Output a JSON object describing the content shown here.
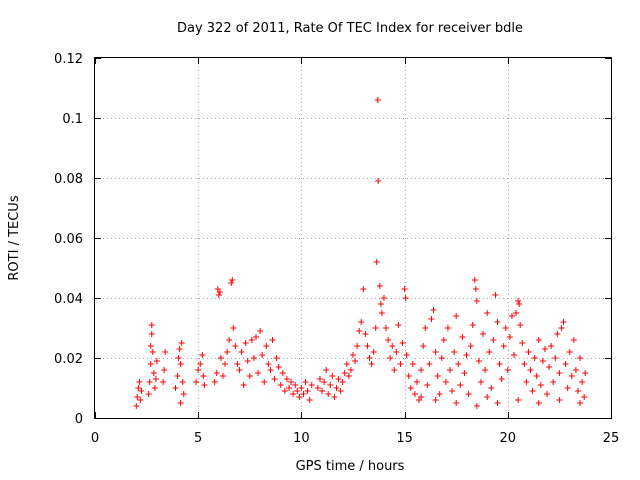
{
  "chart_data": {
    "type": "scatter",
    "title": "Day 322 of 2011, Rate Of TEC Index for receiver bdle",
    "xlabel": "GPS time / hours",
    "ylabel": "ROTI / TECUs",
    "xlim": [
      0,
      25
    ],
    "ylim": [
      0,
      0.12
    ],
    "x_ticks": [
      0,
      5,
      10,
      15,
      20,
      25
    ],
    "x_tick_labels": [
      "0",
      "5",
      "10",
      "15",
      "20",
      "25"
    ],
    "y_ticks": [
      0,
      0.02,
      0.04,
      0.06,
      0.08,
      0.1,
      0.12
    ],
    "y_tick_labels": [
      "0",
      "0.02",
      "0.04",
      "0.06",
      "0.08",
      "0.1",
      "0.12"
    ],
    "grid": true,
    "marker": "+",
    "marker_color": "#ff0000",
    "series": [
      {
        "name": "ROTI",
        "points": [
          [
            2.0,
            0.004
          ],
          [
            2.05,
            0.007
          ],
          [
            2.1,
            0.01
          ],
          [
            2.15,
            0.012
          ],
          [
            2.2,
            0.006
          ],
          [
            2.25,
            0.009
          ],
          [
            2.6,
            0.008
          ],
          [
            2.65,
            0.012
          ],
          [
            2.7,
            0.018
          ],
          [
            2.7,
            0.024
          ],
          [
            2.75,
            0.028
          ],
          [
            2.75,
            0.031
          ],
          [
            2.8,
            0.022
          ],
          [
            2.85,
            0.015
          ],
          [
            2.9,
            0.01
          ],
          [
            2.95,
            0.013
          ],
          [
            3.0,
            0.019
          ],
          [
            3.3,
            0.012
          ],
          [
            3.35,
            0.016
          ],
          [
            3.4,
            0.022
          ],
          [
            3.9,
            0.01
          ],
          [
            4.0,
            0.014
          ],
          [
            4.05,
            0.02
          ],
          [
            4.1,
            0.023
          ],
          [
            4.15,
            0.018
          ],
          [
            4.2,
            0.025
          ],
          [
            4.25,
            0.012
          ],
          [
            4.3,
            0.008
          ],
          [
            4.15,
            0.005
          ],
          [
            4.9,
            0.012
          ],
          [
            5.0,
            0.016
          ],
          [
            5.1,
            0.018
          ],
          [
            5.2,
            0.021
          ],
          [
            5.25,
            0.014
          ],
          [
            5.3,
            0.011
          ],
          [
            5.8,
            0.012
          ],
          [
            5.9,
            0.015
          ],
          [
            5.95,
            0.043
          ],
          [
            6.0,
            0.041
          ],
          [
            6.05,
            0.042
          ],
          [
            6.1,
            0.02
          ],
          [
            6.2,
            0.014
          ],
          [
            6.3,
            0.018
          ],
          [
            6.4,
            0.022
          ],
          [
            6.5,
            0.026
          ],
          [
            6.6,
            0.045
          ],
          [
            6.65,
            0.046
          ],
          [
            6.7,
            0.03
          ],
          [
            6.8,
            0.024
          ],
          [
            6.9,
            0.018
          ],
          [
            7.0,
            0.016
          ],
          [
            7.1,
            0.022
          ],
          [
            7.2,
            0.011
          ],
          [
            7.3,
            0.025
          ],
          [
            7.4,
            0.019
          ],
          [
            7.5,
            0.014
          ],
          [
            7.6,
            0.026
          ],
          [
            7.7,
            0.02
          ],
          [
            7.8,
            0.027
          ],
          [
            7.9,
            0.015
          ],
          [
            8.0,
            0.029
          ],
          [
            8.1,
            0.021
          ],
          [
            8.2,
            0.012
          ],
          [
            8.3,
            0.024
          ],
          [
            8.4,
            0.018
          ],
          [
            8.5,
            0.016
          ],
          [
            8.6,
            0.026
          ],
          [
            8.7,
            0.013
          ],
          [
            8.8,
            0.02
          ],
          [
            8.9,
            0.017
          ],
          [
            9.0,
            0.011
          ],
          [
            9.1,
            0.015
          ],
          [
            9.2,
            0.009
          ],
          [
            9.3,
            0.013
          ],
          [
            9.4,
            0.01
          ],
          [
            9.5,
            0.012
          ],
          [
            9.6,
            0.008
          ],
          [
            9.7,
            0.011
          ],
          [
            9.8,
            0.009
          ],
          [
            9.9,
            0.007
          ],
          [
            10.0,
            0.01
          ],
          [
            10.1,
            0.008
          ],
          [
            10.2,
            0.012
          ],
          [
            10.3,
            0.009
          ],
          [
            10.4,
            0.006
          ],
          [
            10.5,
            0.011
          ],
          [
            10.8,
            0.01
          ],
          [
            10.9,
            0.013
          ],
          [
            11.0,
            0.009
          ],
          [
            11.1,
            0.012
          ],
          [
            11.2,
            0.016
          ],
          [
            11.3,
            0.008
          ],
          [
            11.4,
            0.011
          ],
          [
            11.5,
            0.014
          ],
          [
            11.6,
            0.007
          ],
          [
            11.7,
            0.01
          ],
          [
            11.8,
            0.013
          ],
          [
            11.9,
            0.009
          ],
          [
            12.0,
            0.012
          ],
          [
            12.1,
            0.015
          ],
          [
            12.2,
            0.018
          ],
          [
            12.3,
            0.014
          ],
          [
            12.4,
            0.016
          ],
          [
            12.5,
            0.021
          ],
          [
            12.6,
            0.019
          ],
          [
            12.7,
            0.024
          ],
          [
            12.8,
            0.029
          ],
          [
            12.9,
            0.032
          ],
          [
            13.0,
            0.043
          ],
          [
            13.1,
            0.028
          ],
          [
            13.2,
            0.024
          ],
          [
            13.3,
            0.02
          ],
          [
            13.4,
            0.018
          ],
          [
            13.5,
            0.022
          ],
          [
            13.6,
            0.03
          ],
          [
            13.65,
            0.052
          ],
          [
            13.7,
            0.106
          ],
          [
            13.72,
            0.079
          ],
          [
            13.8,
            0.044
          ],
          [
            13.85,
            0.038
          ],
          [
            13.9,
            0.035
          ],
          [
            14.0,
            0.04
          ],
          [
            14.1,
            0.03
          ],
          [
            14.2,
            0.026
          ],
          [
            14.3,
            0.02
          ],
          [
            14.4,
            0.024
          ],
          [
            14.5,
            0.016
          ],
          [
            14.6,
            0.022
          ],
          [
            14.7,
            0.031
          ],
          [
            14.8,
            0.018
          ],
          [
            14.9,
            0.025
          ],
          [
            15.0,
            0.043
          ],
          [
            15.05,
            0.04
          ],
          [
            15.1,
            0.021
          ],
          [
            15.2,
            0.014
          ],
          [
            15.3,
            0.01
          ],
          [
            15.4,
            0.018
          ],
          [
            15.5,
            0.008
          ],
          [
            15.6,
            0.012
          ],
          [
            15.7,
            0.006
          ],
          [
            15.8,
            0.016
          ],
          [
            15.9,
            0.024
          ],
          [
            16.0,
            0.03
          ],
          [
            16.1,
            0.011
          ],
          [
            16.2,
            0.018
          ],
          [
            16.3,
            0.033
          ],
          [
            16.4,
            0.036
          ],
          [
            16.5,
            0.022
          ],
          [
            16.6,
            0.014
          ],
          [
            16.7,
            0.008
          ],
          [
            16.8,
            0.02
          ],
          [
            16.9,
            0.026
          ],
          [
            17.0,
            0.012
          ],
          [
            17.1,
            0.03
          ],
          [
            17.2,
            0.016
          ],
          [
            17.3,
            0.009
          ],
          [
            17.4,
            0.022
          ],
          [
            17.5,
            0.034
          ],
          [
            17.6,
            0.018
          ],
          [
            17.7,
            0.011
          ],
          [
            17.8,
            0.027
          ],
          [
            17.9,
            0.015
          ],
          [
            18.0,
            0.021
          ],
          [
            18.1,
            0.008
          ],
          [
            18.2,
            0.024
          ],
          [
            18.3,
            0.031
          ],
          [
            18.4,
            0.046
          ],
          [
            18.45,
            0.043
          ],
          [
            18.5,
            0.039
          ],
          [
            18.6,
            0.019
          ],
          [
            18.7,
            0.012
          ],
          [
            18.8,
            0.028
          ],
          [
            18.9,
            0.016
          ],
          [
            19.0,
            0.035
          ],
          [
            19.1,
            0.022
          ],
          [
            19.2,
            0.01
          ],
          [
            19.3,
            0.026
          ],
          [
            19.4,
            0.041
          ],
          [
            19.5,
            0.032
          ],
          [
            19.6,
            0.018
          ],
          [
            19.7,
            0.013
          ],
          [
            19.8,
            0.024
          ],
          [
            19.9,
            0.03
          ],
          [
            20.0,
            0.016
          ],
          [
            20.1,
            0.027
          ],
          [
            20.2,
            0.034
          ],
          [
            20.3,
            0.021
          ],
          [
            20.4,
            0.035
          ],
          [
            20.5,
            0.039
          ],
          [
            20.55,
            0.038
          ],
          [
            20.6,
            0.031
          ],
          [
            20.7,
            0.025
          ],
          [
            20.8,
            0.018
          ],
          [
            20.9,
            0.012
          ],
          [
            21.0,
            0.022
          ],
          [
            21.1,
            0.016
          ],
          [
            21.2,
            0.009
          ],
          [
            21.3,
            0.02
          ],
          [
            21.4,
            0.014
          ],
          [
            21.5,
            0.026
          ],
          [
            21.6,
            0.011
          ],
          [
            21.7,
            0.019
          ],
          [
            21.8,
            0.023
          ],
          [
            21.9,
            0.008
          ],
          [
            22.0,
            0.017
          ],
          [
            22.1,
            0.024
          ],
          [
            22.2,
            0.012
          ],
          [
            22.3,
            0.02
          ],
          [
            22.4,
            0.028
          ],
          [
            22.5,
            0.015
          ],
          [
            22.6,
            0.03
          ],
          [
            22.7,
            0.032
          ],
          [
            22.8,
            0.018
          ],
          [
            22.9,
            0.01
          ],
          [
            23.0,
            0.022
          ],
          [
            23.1,
            0.014
          ],
          [
            23.2,
            0.026
          ],
          [
            23.3,
            0.016
          ],
          [
            23.4,
            0.009
          ],
          [
            23.5,
            0.02
          ],
          [
            23.6,
            0.012
          ],
          [
            23.7,
            0.007
          ],
          [
            23.75,
            0.015
          ],
          [
            16.5,
            0.006
          ],
          [
            17.5,
            0.005
          ],
          [
            18.5,
            0.004
          ],
          [
            19.5,
            0.005
          ],
          [
            20.5,
            0.006
          ],
          [
            21.5,
            0.005
          ],
          [
            22.5,
            0.006
          ],
          [
            23.5,
            0.005
          ],
          [
            15.8,
            0.007
          ],
          [
            19.0,
            0.007
          ]
        ]
      }
    ]
  }
}
